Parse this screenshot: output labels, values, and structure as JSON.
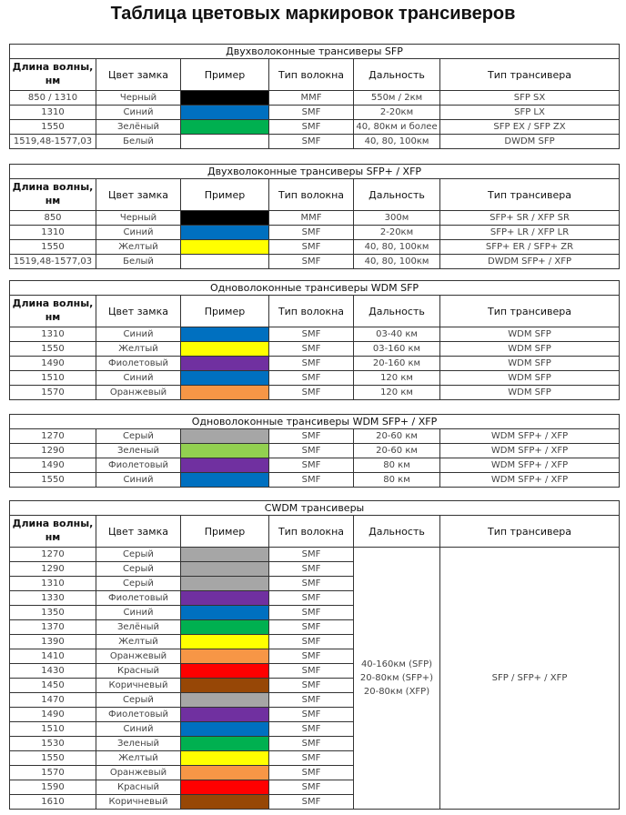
{
  "page_title": "Таблица цветовых маркировок трансиверов",
  "headers": [
    "Длина волны, нм",
    "Цвет замка",
    "Пример",
    "Тип волокна",
    "Дальность",
    "Тип трансивера"
  ],
  "colors": {
    "Черный": "#000000",
    "Синий": "#0070c0",
    "Зелёный": "#00b050",
    "Белый": "#ffffff",
    "Желтый": "#ffff00",
    "Фиолетовый": "#7030a0",
    "Оранжевый": "#f79646",
    "Серый": "#a6a6a6",
    "Зеленый-светлый": "#92d050",
    "Красный": "#ff0000",
    "Коричневый": "#974706"
  },
  "tables": [
    {
      "title": "Двухволоконные трансиверы SFP",
      "show_header": true,
      "rows": [
        {
          "wavelength": "850 / 1310",
          "color": "Черный",
          "swatch": "Черный",
          "fiber": "MMF",
          "range": "550м / 2км",
          "type": "SFP SX"
        },
        {
          "wavelength": "1310",
          "color": "Синий",
          "swatch": "Синий",
          "fiber": "SMF",
          "range": "2-20км",
          "type": "SFP LX"
        },
        {
          "wavelength": "1550",
          "color": "Зелёный",
          "swatch": "Зелёный",
          "fiber": "SMF",
          "range": "40, 80км и более",
          "type": "SFP EX / SFP ZX"
        },
        {
          "wavelength": "1519,48-1577,03",
          "color": "Белый",
          "swatch": "Белый",
          "fiber": "SMF",
          "range": "40, 80, 100км",
          "type": "DWDM SFP"
        }
      ]
    },
    {
      "title": "Двухволоконные трансиверы SFP+ / XFP",
      "show_header": true,
      "rows": [
        {
          "wavelength": "850",
          "color": "Черный",
          "swatch": "Черный",
          "fiber": "MMF",
          "range": "300м",
          "type": "SFP+ SR / XFP SR"
        },
        {
          "wavelength": "1310",
          "color": "Синий",
          "swatch": "Синий",
          "fiber": "SMF",
          "range": "2-20км",
          "type": "SFP+ LR / XFP LR"
        },
        {
          "wavelength": "1550",
          "color": "Желтый",
          "swatch": "Желтый",
          "fiber": "SMF",
          "range": "40, 80, 100км",
          "type": "SFP+ ER / SFP+ ZR"
        },
        {
          "wavelength": "1519,48-1577,03",
          "color": "Белый",
          "swatch": "Белый",
          "fiber": "SMF",
          "range": "40, 80, 100км",
          "type": "DWDM SFP+ / XFP"
        }
      ]
    },
    {
      "title": "Одноволоконные трансиверы WDM SFP",
      "show_header": true,
      "rows": [
        {
          "wavelength": "1310",
          "color": "Синий",
          "swatch": "Синий",
          "fiber": "SMF",
          "range": "03-40 км",
          "type": "WDM SFP"
        },
        {
          "wavelength": "1550",
          "color": "Желтый",
          "swatch": "Желтый",
          "fiber": "SMF",
          "range": "03-160 км",
          "type": "WDM SFP"
        },
        {
          "wavelength": "1490",
          "color": "Фиолетовый",
          "swatch": "Фиолетовый",
          "fiber": "SMF",
          "range": "20-160 км",
          "type": "WDM SFP"
        },
        {
          "wavelength": "1510",
          "color": "Синий",
          "swatch": "Синий",
          "fiber": "SMF",
          "range": "120 км",
          "type": "WDM SFP"
        },
        {
          "wavelength": "1570",
          "color": "Оранжевый",
          "swatch": "Оранжевый",
          "fiber": "SMF",
          "range": "120 км",
          "type": "WDM SFP"
        }
      ]
    },
    {
      "title": "Одноволоконные трансиверы WDM SFP+ / XFP",
      "show_header": false,
      "rows": [
        {
          "wavelength": "1270",
          "color": "Серый",
          "swatch": "Серый",
          "fiber": "SMF",
          "range": "20-60 км",
          "type": "WDM SFP+ / XFP"
        },
        {
          "wavelength": "1290",
          "color": "Зеленый",
          "swatch": "Зеленый-светлый",
          "fiber": "SMF",
          "range": "20-60 км",
          "type": "WDM SFP+ / XFP"
        },
        {
          "wavelength": "1490",
          "color": "Фиолетовый",
          "swatch": "Фиолетовый",
          "fiber": "SMF",
          "range": "80 км",
          "type": "WDM SFP+ / XFP"
        },
        {
          "wavelength": "1550",
          "color": "Синий",
          "swatch": "Синий",
          "fiber": "SMF",
          "range": "80 км",
          "type": "WDM SFP+ / XFP"
        }
      ]
    },
    {
      "title": "CWDM трансиверы",
      "show_header": true,
      "merged_range": [
        "40-160км (SFP)",
        "20-80км (SFP+)",
        "20-80км (XFP)"
      ],
      "merged_type": "SFP / SFP+ / XFP",
      "rows": [
        {
          "wavelength": "1270",
          "color": "Серый",
          "swatch": "Серый",
          "fiber": "SMF"
        },
        {
          "wavelength": "1290",
          "color": "Серый",
          "swatch": "Серый",
          "fiber": "SMF"
        },
        {
          "wavelength": "1310",
          "color": "Серый",
          "swatch": "Серый",
          "fiber": "SMF"
        },
        {
          "wavelength": "1330",
          "color": "Фиолетовый",
          "swatch": "Фиолетовый",
          "fiber": "SMF"
        },
        {
          "wavelength": "1350",
          "color": "Синий",
          "swatch": "Синий",
          "fiber": "SMF"
        },
        {
          "wavelength": "1370",
          "color": "Зелёный",
          "swatch": "Зелёный",
          "fiber": "SMF"
        },
        {
          "wavelength": "1390",
          "color": "Желтый",
          "swatch": "Желтый",
          "fiber": "SMF"
        },
        {
          "wavelength": "1410",
          "color": "Оранжевый",
          "swatch": "Оранжевый",
          "fiber": "SMF"
        },
        {
          "wavelength": "1430",
          "color": "Красный",
          "swatch": "Красный",
          "fiber": "SMF"
        },
        {
          "wavelength": "1450",
          "color": "Коричневый",
          "swatch": "Коричневый",
          "fiber": "SMF"
        },
        {
          "wavelength": "1470",
          "color": "Серый",
          "swatch": "Серый",
          "fiber": "SMF"
        },
        {
          "wavelength": "1490",
          "color": "Фиолетовый",
          "swatch": "Фиолетовый",
          "fiber": "SMF"
        },
        {
          "wavelength": "1510",
          "color": "Синий",
          "swatch": "Синий",
          "fiber": "SMF"
        },
        {
          "wavelength": "1530",
          "color": "Зеленый",
          "swatch": "Зелёный",
          "fiber": "SMF"
        },
        {
          "wavelength": "1550",
          "color": "Желтый",
          "swatch": "Желтый",
          "fiber": "SMF"
        },
        {
          "wavelength": "1570",
          "color": "Оранжевый",
          "swatch": "Оранжевый",
          "fiber": "SMF"
        },
        {
          "wavelength": "1590",
          "color": "Красный",
          "swatch": "Красный",
          "fiber": "SMF"
        },
        {
          "wavelength": "1610",
          "color": "Коричневый",
          "swatch": "Коричневый",
          "fiber": "SMF"
        }
      ]
    }
  ]
}
